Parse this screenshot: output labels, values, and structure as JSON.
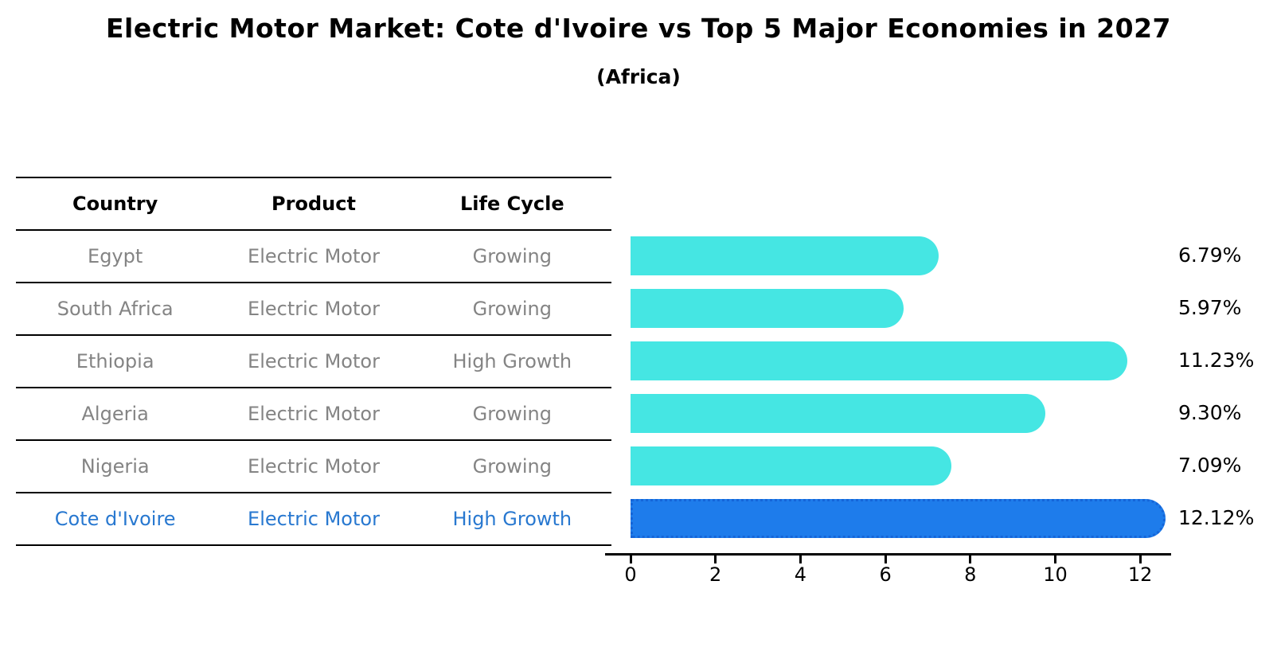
{
  "header": {
    "title": "Electric Motor Market: Cote d'Ivoire vs Top 5 Major Economies in 2027",
    "subtitle": "(Africa)"
  },
  "table": {
    "columns": [
      "Country",
      "Product",
      "Life Cycle"
    ],
    "rows": [
      {
        "country": "Egypt",
        "product": "Electric Motor",
        "life_cycle": "Growing",
        "highlight": false
      },
      {
        "country": "South Africa",
        "product": "Electric Motor",
        "life_cycle": "Growing",
        "highlight": false
      },
      {
        "country": "Ethiopia",
        "product": "Electric Motor",
        "life_cycle": "High Growth",
        "highlight": false
      },
      {
        "country": "Algeria",
        "product": "Electric Motor",
        "life_cycle": "Growing",
        "highlight": false
      },
      {
        "country": "Nigeria",
        "product": "Electric Motor",
        "life_cycle": "Growing",
        "highlight": false
      },
      {
        "country": "Cote d'Ivoire",
        "product": "Electric Motor",
        "life_cycle": "High Growth",
        "highlight": true
      }
    ]
  },
  "chart_data": {
    "type": "bar",
    "orientation": "horizontal",
    "title": "Electric Motor Market: Cote d'Ivoire vs Top 5 Major Economies in 2027 (Africa)",
    "categories": [
      "Egypt",
      "South Africa",
      "Ethiopia",
      "Algeria",
      "Nigeria",
      "Cote d'Ivoire"
    ],
    "values": [
      6.79,
      5.97,
      11.23,
      9.3,
      7.09,
      12.12
    ],
    "value_labels": [
      "6.79%",
      "5.97%",
      "11.23%",
      "9.30%",
      "7.09%",
      "12.12%"
    ],
    "highlight_index": 5,
    "x_ticks": [
      0,
      2,
      4,
      6,
      8,
      10,
      12
    ],
    "xlim": [
      -0.6,
      12.7
    ],
    "grid": false,
    "legend": "none",
    "colors": {
      "bar": "#45E6E3",
      "highlight_bar": "#1E7CEB",
      "highlight_edge": "#1565D8",
      "table_text": "#848484",
      "highlight_text": "#2878D0",
      "axis_text": "#000000"
    }
  }
}
